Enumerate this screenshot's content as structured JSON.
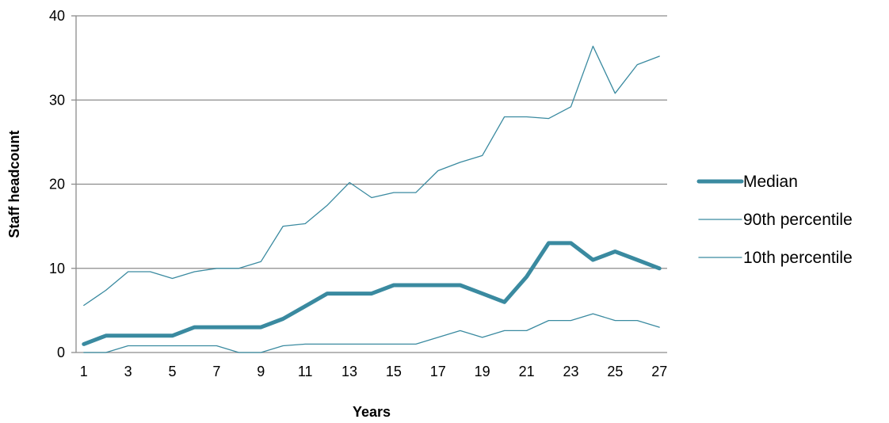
{
  "chart_data": {
    "type": "line",
    "title": "",
    "xlabel": "Years",
    "ylabel": "Staff headcount",
    "x": [
      1,
      2,
      3,
      4,
      5,
      6,
      7,
      8,
      9,
      10,
      11,
      12,
      13,
      14,
      15,
      16,
      17,
      18,
      19,
      20,
      21,
      22,
      23,
      24,
      25,
      26,
      27
    ],
    "x_tick_labels": [
      "1",
      "3",
      "5",
      "7",
      "9",
      "11",
      "13",
      "15",
      "17",
      "19",
      "21",
      "23",
      "25",
      "27"
    ],
    "x_tick_values": [
      1,
      3,
      5,
      7,
      9,
      11,
      13,
      15,
      17,
      19,
      21,
      23,
      25,
      27
    ],
    "ylim": [
      0,
      40
    ],
    "y_ticks": [
      0,
      10,
      20,
      30,
      40
    ],
    "y_tick_labels": [
      "0",
      "10",
      "20",
      "30",
      "40"
    ],
    "grid": "horizontal",
    "legend_position": "right",
    "series": [
      {
        "name": "Median",
        "color": "#3a8aa0",
        "weight": "thick",
        "values": [
          1,
          2,
          2,
          2,
          2,
          3,
          3,
          3,
          3,
          4,
          5.5,
          7,
          7,
          7,
          8,
          8,
          8,
          8,
          7,
          6,
          9,
          13,
          13,
          11,
          12,
          11,
          10
        ]
      },
      {
        "name": "90th percentile",
        "color": "#3a8aa0",
        "weight": "thin",
        "values": [
          5.6,
          7.4,
          9.6,
          9.6,
          8.8,
          9.6,
          10,
          10,
          10.8,
          15,
          15.3,
          17.5,
          20.2,
          18.4,
          19,
          19,
          21.6,
          22.6,
          23.4,
          28,
          28,
          27.8,
          29.2,
          36.4,
          30.8,
          34.2,
          35.2
        ]
      },
      {
        "name": "10th percentile",
        "color": "#3a8aa0",
        "weight": "thin",
        "values": [
          0,
          0,
          0.8,
          0.8,
          0.8,
          0.8,
          0.8,
          0,
          0,
          0.8,
          1,
          1,
          1,
          1,
          1,
          1,
          1.8,
          2.6,
          1.8,
          2.6,
          2.6,
          3.8,
          3.8,
          4.6,
          3.8,
          3.8,
          3
        ]
      }
    ]
  }
}
